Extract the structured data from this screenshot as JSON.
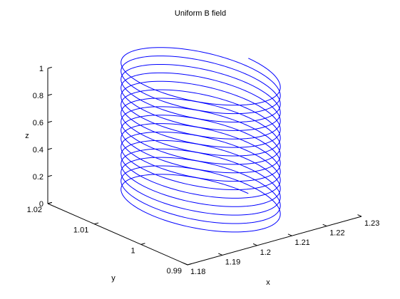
{
  "chart_data": {
    "type": "line3d",
    "title": "Uniform B field",
    "xlabel": "x",
    "ylabel": "y",
    "zlabel": "z",
    "xlim": [
      1.18,
      1.23
    ],
    "ylim": [
      0.99,
      1.02
    ],
    "zlim": [
      0,
      1
    ],
    "xticks": [
      1.18,
      1.19,
      1.2,
      1.21,
      1.22,
      1.23
    ],
    "xtick_labels": [
      "1.18",
      "1.19",
      "1.2",
      "1.21",
      "1.22",
      "1.23"
    ],
    "yticks": [
      0.99,
      1,
      1.01,
      1.02
    ],
    "ytick_labels": [
      "0.99",
      "1",
      "1.01",
      "1.02"
    ],
    "zticks": [
      0,
      0.2,
      0.4,
      0.6,
      0.8,
      1
    ],
    "ztick_labels": [
      "0",
      "0.2",
      "0.4",
      "0.6",
      "0.8",
      "1"
    ],
    "grid": false,
    "series": [
      {
        "curve": "helix",
        "color": "#0000ff",
        "axis_center": [
          1.2056,
          1.0063
        ],
        "radius": 0.0137,
        "turns": 16,
        "z_range": [
          0,
          1
        ]
      }
    ]
  }
}
